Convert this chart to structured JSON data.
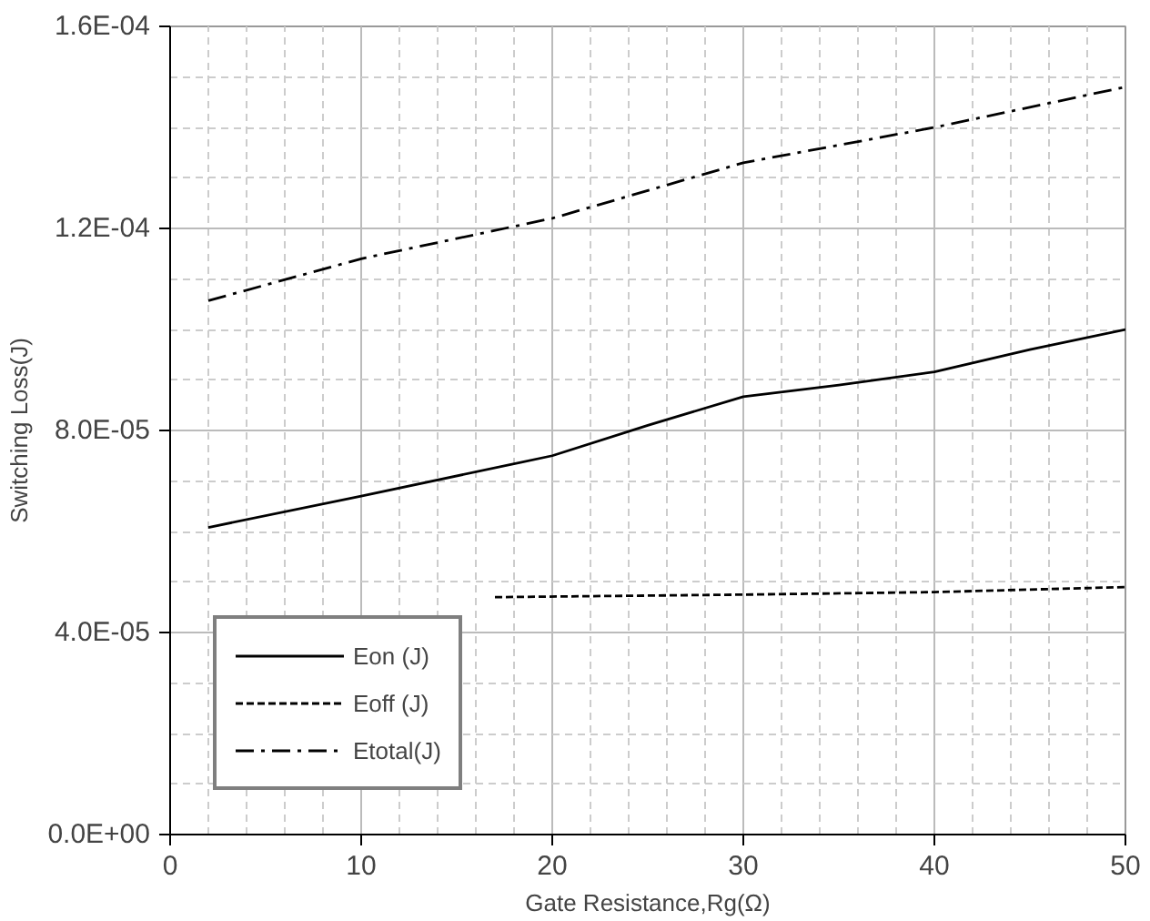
{
  "chart_data": {
    "type": "line",
    "xlabel": "Gate Resistance,Rg(Ω)",
    "ylabel": "Switching Loss(J)",
    "xlim": [
      0,
      50
    ],
    "xticks": [
      0,
      10,
      20,
      30,
      40,
      50
    ],
    "ylim": [
      0,
      0.00016
    ],
    "yticks": [
      {
        "value": 0,
        "label": "0.0E+00"
      },
      {
        "value": 4e-05,
        "label": "4.0E-05"
      },
      {
        "value": 8e-05,
        "label": "8.0E-05"
      },
      {
        "value": 0.00012,
        "label": "1.2E-04"
      },
      {
        "value": 0.00016,
        "label": "1.6E-04"
      }
    ],
    "grid": true,
    "legend": "bottom left",
    "marker": "none",
    "series": [
      {
        "name": "Eon (J)",
        "color": "#000000",
        "line_style": "solid",
        "x": [
          2,
          10,
          20,
          25,
          30,
          35,
          40,
          45,
          50
        ],
        "values": [
          6.08e-05,
          6.7e-05,
          7.5e-05,
          8.1e-05,
          8.67e-05,
          8.9e-05,
          9.16e-05,
          9.6e-05,
          0.0001
        ]
      },
      {
        "name": "Eoff (J)",
        "color": "#000000",
        "line_style": "dashed",
        "x": [
          17,
          30,
          40,
          50
        ],
        "values": [
          4.7e-05,
          4.75e-05,
          4.8e-05,
          4.9e-05
        ]
      },
      {
        "name": "Etotal(J)",
        "color": "#000000",
        "line_style": "dashdot",
        "x": [
          2,
          10,
          20,
          30,
          40,
          50
        ],
        "values": [
          0.0001057,
          0.000114,
          0.000122,
          0.000133,
          0.00014,
          0.000148
        ]
      }
    ]
  }
}
